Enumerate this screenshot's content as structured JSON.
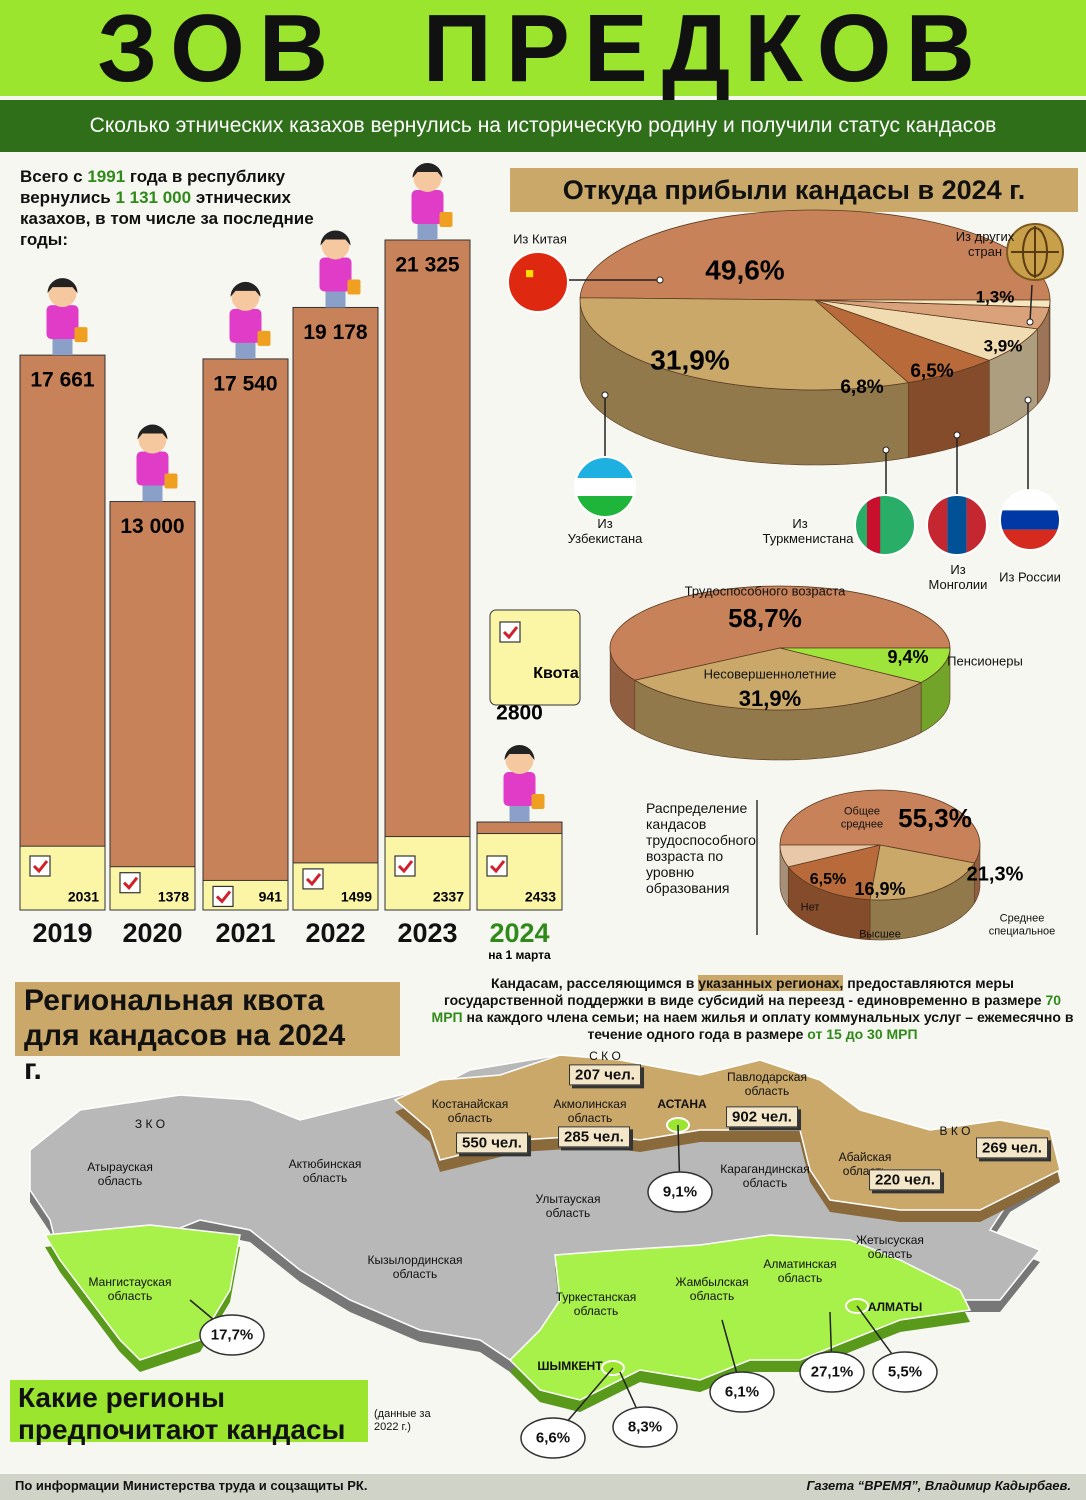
{
  "header": {
    "title": "ЗОВ ПРЕДКОВ",
    "subtitle": "Сколько этнических казахов вернулись на историческую родину и получили статус кандасов"
  },
  "intro": [
    "Всего с ",
    "1991",
    " года в республику вернулись ",
    "1 131 000",
    " этнических казахов, в том числе за последние годы:"
  ],
  "chart_data": [
    {
      "type": "bar",
      "categories": [
        "2019",
        "2020",
        "2021",
        "2022",
        "2023",
        "2024"
      ],
      "category_note": "на 1 марта",
      "series": [
        {
          "color": "#c8825a",
          "values": [
            17661,
            13000,
            17540,
            19178,
            21325,
            2800
          ],
          "value_labels": [
            "17 661",
            "13 000",
            "17 540",
            "19 178",
            "21 325",
            "2800"
          ]
        },
        {
          "name": "Квота",
          "color": "#fbf5a6",
          "values": [
            2031,
            1378,
            941,
            1499,
            2337,
            2433
          ]
        }
      ]
    },
    {
      "type": "pie3d",
      "title": "Откуда прибыли кандасы в 2024 г.",
      "categories": [
        "Из Китая",
        "Из Узбекистана",
        "Из Туркменистана",
        "Из Монголии",
        "Из России",
        "Из других стран"
      ],
      "values": [
        49.6,
        31.9,
        6.8,
        6.5,
        3.9,
        1.3
      ],
      "value_labels": [
        "49,6%",
        "31,9%",
        "6,8%",
        "6,5%",
        "3,9%",
        "1,3%"
      ],
      "colors": [
        "#c8825a",
        "#c9a86a",
        "#b86a3a",
        "#f0dcb0",
        "#d9a27a",
        "#f5e6c0"
      ]
    },
    {
      "type": "pie3d",
      "categories": [
        "Трудоспособного возраста",
        "Несовершеннолетние",
        "Пенсионеры"
      ],
      "values": [
        58.7,
        31.9,
        9.4
      ],
      "value_labels": [
        "58,7%",
        "31,9%",
        "9,4%"
      ],
      "colors": [
        "#c8825a",
        "#c9a86a",
        "#9ee43a"
      ]
    },
    {
      "type": "pie3d",
      "title": "Распределение кандасов трудоспособного возраста по уровню образования",
      "categories": [
        "Общее среднее",
        "Среднее специальное",
        "Высшее",
        "Нет"
      ],
      "values": [
        55.3,
        21.3,
        16.9,
        6.5
      ],
      "value_labels": [
        "55,3%",
        "21,3%",
        "16,9%",
        "6,5%"
      ],
      "colors": [
        "#c8825a",
        "#c9a86a",
        "#b86a3a",
        "#e8c8a8"
      ]
    }
  ],
  "map": {
    "title": "Региональная квота для кандасов на 2024 г.",
    "note": [
      "Кандасам, расселяющимся в ",
      "указанных регионах,",
      " предоставляются меры государственной поддержки в виде субсидий на переезд - единовременно в размере ",
      "70 МРП",
      "  на каждого члена семьи; на наем жилья и оплату коммунальных услуг – ежемесячно в течение одного года в размере ",
      "от 15 до 30 МРП"
    ],
    "regions": [
      {
        "name": "З К О"
      },
      {
        "name": "Атырауская область"
      },
      {
        "name": "Актюбинская область"
      },
      {
        "name": "Костанайская область",
        "quota": "550 чел."
      },
      {
        "name": "Акмолинская область",
        "quota": "285 чел."
      },
      {
        "name": "С К О",
        "quota": "207 чел."
      },
      {
        "name": "Павлодарская область",
        "quota": "902 чел."
      },
      {
        "name": "В К О",
        "quota": "269 чел."
      },
      {
        "name": "Абайская область",
        "quota": "220 чел."
      },
      {
        "name": "Карагандинская область"
      },
      {
        "name": "Улытауская область"
      },
      {
        "name": "Кызылординская область"
      },
      {
        "name": "Жетысуская область"
      },
      {
        "name": "Мангистауская область",
        "share": "17,7%"
      },
      {
        "name": "Туркестанская область",
        "share": "8,3%"
      },
      {
        "name": "Жамбылская область",
        "share": "6,1%"
      },
      {
        "name": "Алматинская область",
        "share": "27,1%"
      },
      {
        "name": "АСТАНА",
        "share": "9,1%"
      },
      {
        "name": "АЛМАТЫ",
        "share": "5,5%"
      },
      {
        "name": "ШЫМКЕНТ",
        "share": "6,6%"
      }
    ],
    "preferences_title": "Какие регионы предпочитают кандасы",
    "preferences_note": "(данные за 2022 г.)"
  },
  "footer": {
    "source": "По информации Министерства труда и соцзащиты РК.",
    "credit": "Газета “ВРЕМЯ”, Владимир Кадырбаев."
  }
}
